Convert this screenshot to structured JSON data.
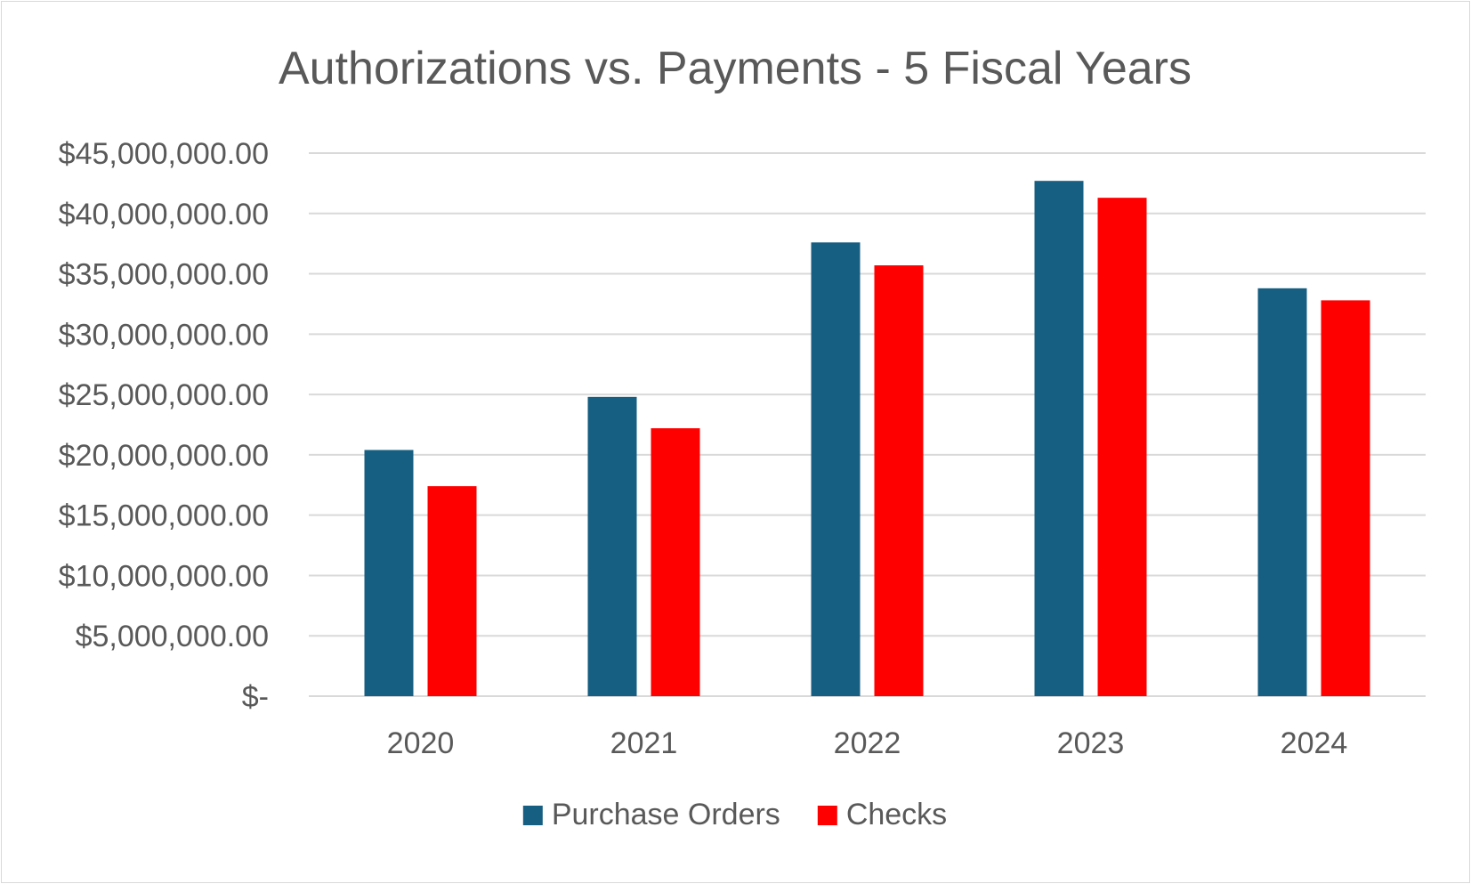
{
  "chart_data": {
    "type": "bar",
    "title": "Authorizations vs. Payments - 5 Fiscal Years",
    "xlabel": "",
    "ylabel": "",
    "categories": [
      "2020",
      "2021",
      "2022",
      "2023",
      "2024"
    ],
    "series": [
      {
        "name": "Purchase Orders",
        "color": "#175f82",
        "values": [
          20400000,
          24800000,
          37600000,
          42700000,
          33800000
        ]
      },
      {
        "name": "Checks",
        "color": "#ff0000",
        "values": [
          17400000,
          22200000,
          35700000,
          41300000,
          32800000
        ]
      }
    ],
    "ylim": [
      0,
      45000000
    ],
    "y_ticks": [
      0,
      5000000,
      10000000,
      15000000,
      20000000,
      25000000,
      30000000,
      35000000,
      40000000,
      45000000
    ],
    "y_tick_labels": [
      "$-",
      "$5,000,000.00",
      "$10,000,000.00",
      "$15,000,000.00",
      "$20,000,000.00",
      "$25,000,000.00",
      "$30,000,000.00",
      "$35,000,000.00",
      "$40,000,000.00",
      "$45,000,000.00"
    ],
    "grid": true,
    "legend_position": "bottom"
  }
}
